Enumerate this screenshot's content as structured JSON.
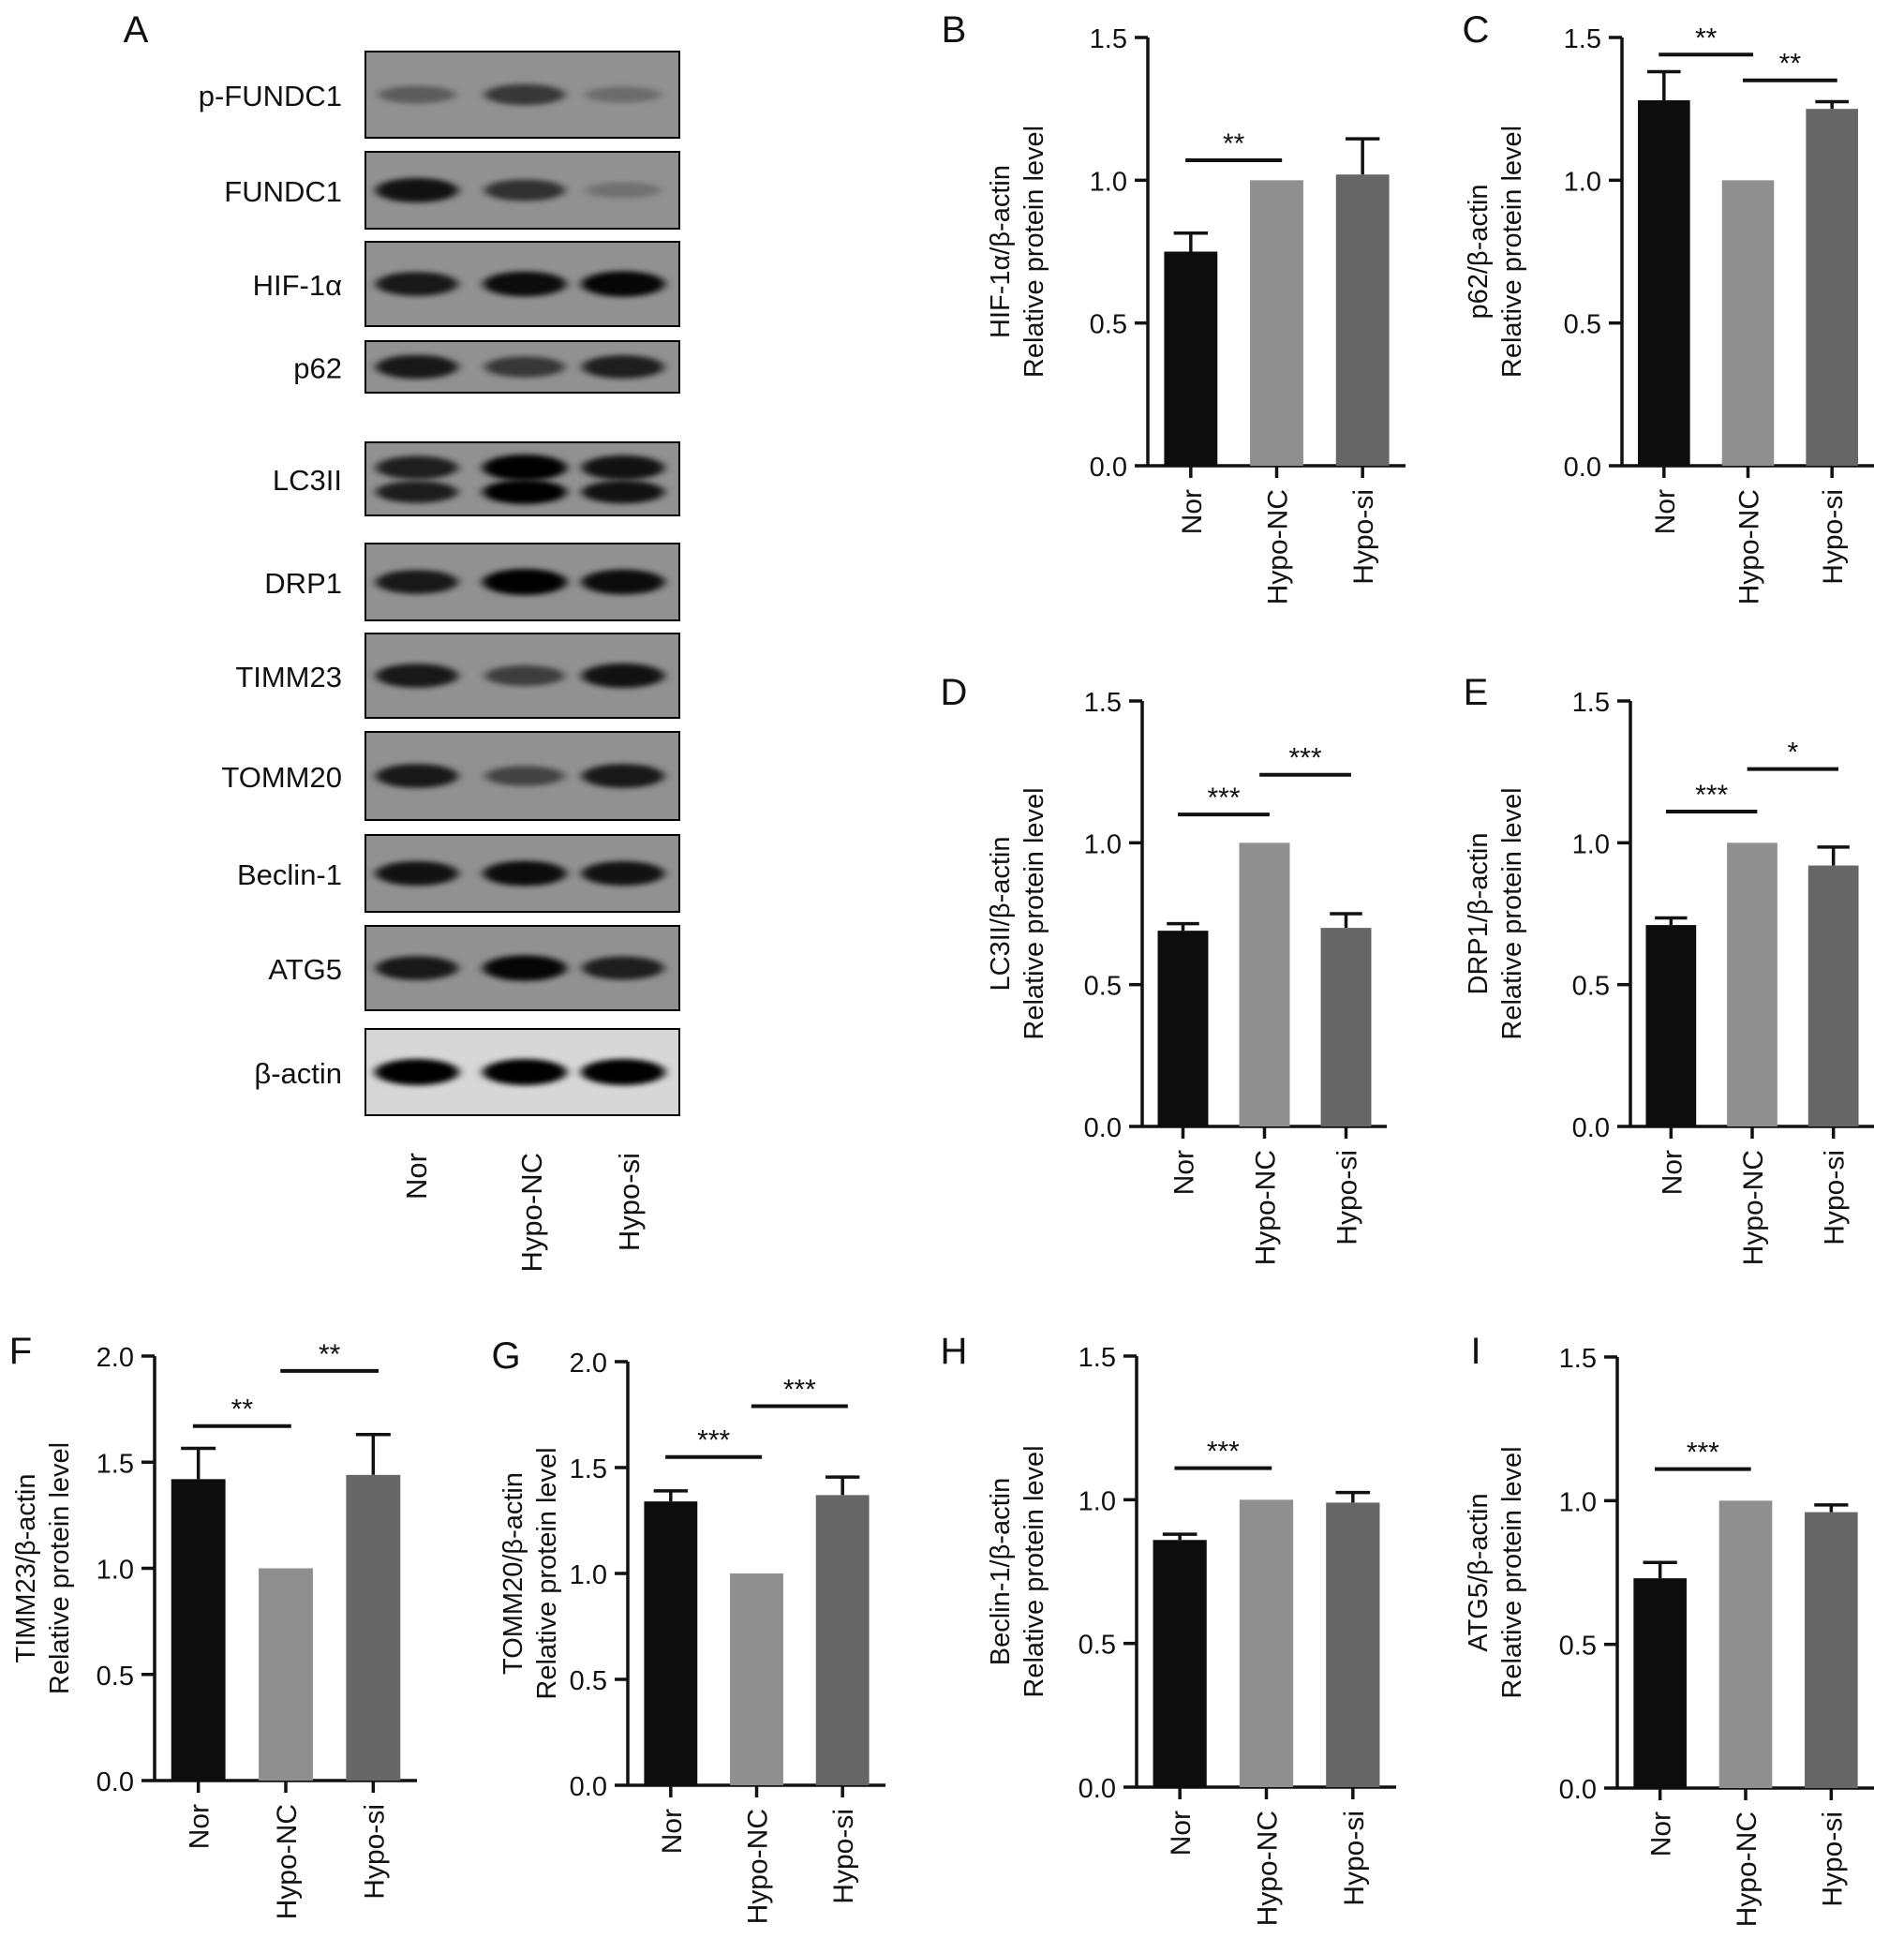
{
  "blot": {
    "panel_letter": "A",
    "lanes": [
      "Nor",
      "Hypo-NC",
      "Hypo-si"
    ],
    "bands": [
      {
        "label": "p-FUNDC1",
        "intensity": [
          0.25,
          0.55,
          0.12
        ],
        "double": false
      },
      {
        "label": "FUNDC1",
        "intensity": [
          0.85,
          0.6,
          0.08
        ],
        "double": false
      },
      {
        "label": "HIF-1α",
        "intensity": [
          0.8,
          0.9,
          0.95
        ],
        "double": false
      },
      {
        "label": "p62",
        "intensity": [
          0.8,
          0.55,
          0.75
        ],
        "double": false
      },
      {
        "label": "LC3II",
        "intensity": [
          0.75,
          1.0,
          0.85
        ],
        "double": true
      },
      {
        "label": "DRP1",
        "intensity": [
          0.8,
          1.0,
          0.9
        ],
        "double": false
      },
      {
        "label": "TIMM23",
        "intensity": [
          0.8,
          0.5,
          0.85
        ],
        "double": false
      },
      {
        "label": "TOMM20",
        "intensity": [
          0.8,
          0.45,
          0.8
        ],
        "double": false
      },
      {
        "label": "Beclin-1",
        "intensity": [
          0.85,
          0.9,
          0.85
        ],
        "double": false
      },
      {
        "label": "ATG5",
        "intensity": [
          0.8,
          0.95,
          0.75
        ],
        "double": false
      },
      {
        "label": "β-actin",
        "intensity": [
          1.0,
          1.0,
          1.0
        ],
        "double": false
      }
    ]
  },
  "colors": {
    "nor": "#0d0d0d",
    "hypo_nc": "#8f8f8f",
    "hypo_si": "#666666",
    "axis": "#111111"
  },
  "chart_data": [
    {
      "panel": "B",
      "type": "bar",
      "categories": [
        "Nor",
        "Hypo-NC",
        "Hypo-si"
      ],
      "values": [
        0.75,
        1.0,
        1.02
      ],
      "errors": [
        0.065,
        0,
        0.125
      ],
      "ylabel": [
        "HIF-1α/β-actin",
        "Relative protein level"
      ],
      "ylim": [
        0,
        1.5
      ],
      "yticks": [
        "0.0",
        "0.5",
        "1.0",
        "1.5"
      ],
      "significance": [
        {
          "from": 0,
          "to": 1,
          "y": 1.07,
          "label": "**"
        }
      ]
    },
    {
      "panel": "C",
      "type": "bar",
      "categories": [
        "Nor",
        "Hypo-NC",
        "Hypo-si"
      ],
      "values": [
        1.28,
        1.0,
        1.25
      ],
      "errors": [
        0.1,
        0,
        0.025
      ],
      "ylabel": [
        "p62/β-actin",
        "Relative protein level"
      ],
      "ylim": [
        0,
        1.5
      ],
      "yticks": [
        "0.0",
        "0.5",
        "1.0",
        "1.5"
      ],
      "significance": [
        {
          "from": 0,
          "to": 1,
          "y": 1.44,
          "label": "**"
        },
        {
          "from": 1,
          "to": 2,
          "y": 1.35,
          "label": "**"
        }
      ]
    },
    {
      "panel": "D",
      "type": "bar",
      "categories": [
        "Nor",
        "Hypo-NC",
        "Hypo-si"
      ],
      "values": [
        0.69,
        1.0,
        0.7
      ],
      "errors": [
        0.025,
        0,
        0.05
      ],
      "ylabel": [
        "LC3II/β-actin",
        "Relative protein level"
      ],
      "ylim": [
        0,
        1.5
      ],
      "yticks": [
        "0.0",
        "0.5",
        "1.0",
        "1.5"
      ],
      "significance": [
        {
          "from": 0,
          "to": 1,
          "y": 1.1,
          "label": "***"
        },
        {
          "from": 1,
          "to": 2,
          "y": 1.24,
          "label": "***"
        }
      ]
    },
    {
      "panel": "E",
      "type": "bar",
      "categories": [
        "Nor",
        "Hypo-NC",
        "Hypo-si"
      ],
      "values": [
        0.71,
        1.0,
        0.92
      ],
      "errors": [
        0.025,
        0,
        0.065
      ],
      "ylabel": [
        "DRP1/β-actin",
        "Relative protein level"
      ],
      "ylim": [
        0,
        1.5
      ],
      "yticks": [
        "0.0",
        "0.5",
        "1.0",
        "1.5"
      ],
      "significance": [
        {
          "from": 0,
          "to": 1,
          "y": 1.11,
          "label": "***"
        },
        {
          "from": 1,
          "to": 2,
          "y": 1.26,
          "label": "*"
        }
      ]
    },
    {
      "panel": "F",
      "type": "bar",
      "categories": [
        "Nor",
        "Hypo-NC",
        "Hypo-si"
      ],
      "values": [
        1.42,
        1.0,
        1.44
      ],
      "errors": [
        0.145,
        0,
        0.19
      ],
      "ylabel": [
        "TIMM23/β-actin",
        "Relative protein level"
      ],
      "ylim": [
        0,
        2.0
      ],
      "yticks": [
        "0.0",
        "0.5",
        "1.0",
        "1.5",
        "2.0"
      ],
      "significance": [
        {
          "from": 0,
          "to": 1,
          "y": 1.67,
          "label": "**"
        },
        {
          "from": 1,
          "to": 2,
          "y": 1.93,
          "label": "**"
        }
      ]
    },
    {
      "panel": "G",
      "type": "bar",
      "categories": [
        "Nor",
        "Hypo-NC",
        "Hypo-si"
      ],
      "values": [
        1.34,
        1.0,
        1.37
      ],
      "errors": [
        0.05,
        0,
        0.085
      ],
      "ylabel": [
        "TOMM20/β-actin",
        "Relative protein level"
      ],
      "ylim": [
        0,
        2.0
      ],
      "yticks": [
        "0.0",
        "0.5",
        "1.0",
        "1.5",
        "2.0"
      ],
      "significance": [
        {
          "from": 0,
          "to": 1,
          "y": 1.55,
          "label": "***"
        },
        {
          "from": 1,
          "to": 2,
          "y": 1.79,
          "label": "***"
        }
      ]
    },
    {
      "panel": "H",
      "type": "bar",
      "categories": [
        "Nor",
        "Hypo-NC",
        "Hypo-si"
      ],
      "values": [
        0.86,
        1.0,
        0.99
      ],
      "errors": [
        0.02,
        0,
        0.035
      ],
      "ylabel": [
        "Beclin-1/β-actin",
        "Relative protein level"
      ],
      "ylim": [
        0,
        1.5
      ],
      "yticks": [
        "0.0",
        "0.5",
        "1.0",
        "1.5"
      ],
      "significance": [
        {
          "from": 0,
          "to": 1,
          "y": 1.11,
          "label": "***"
        }
      ]
    },
    {
      "panel": "I",
      "type": "bar",
      "categories": [
        "Nor",
        "Hypo-NC",
        "Hypo-si"
      ],
      "values": [
        0.73,
        1.0,
        0.96
      ],
      "errors": [
        0.055,
        0,
        0.025
      ],
      "ylabel": [
        "ATG5/β-actin",
        "Relative protein level"
      ],
      "ylim": [
        0,
        1.5
      ],
      "yticks": [
        "0.0",
        "0.5",
        "1.0",
        "1.5"
      ],
      "significance": [
        {
          "from": 0,
          "to": 1,
          "y": 1.11,
          "label": "***"
        }
      ]
    }
  ]
}
